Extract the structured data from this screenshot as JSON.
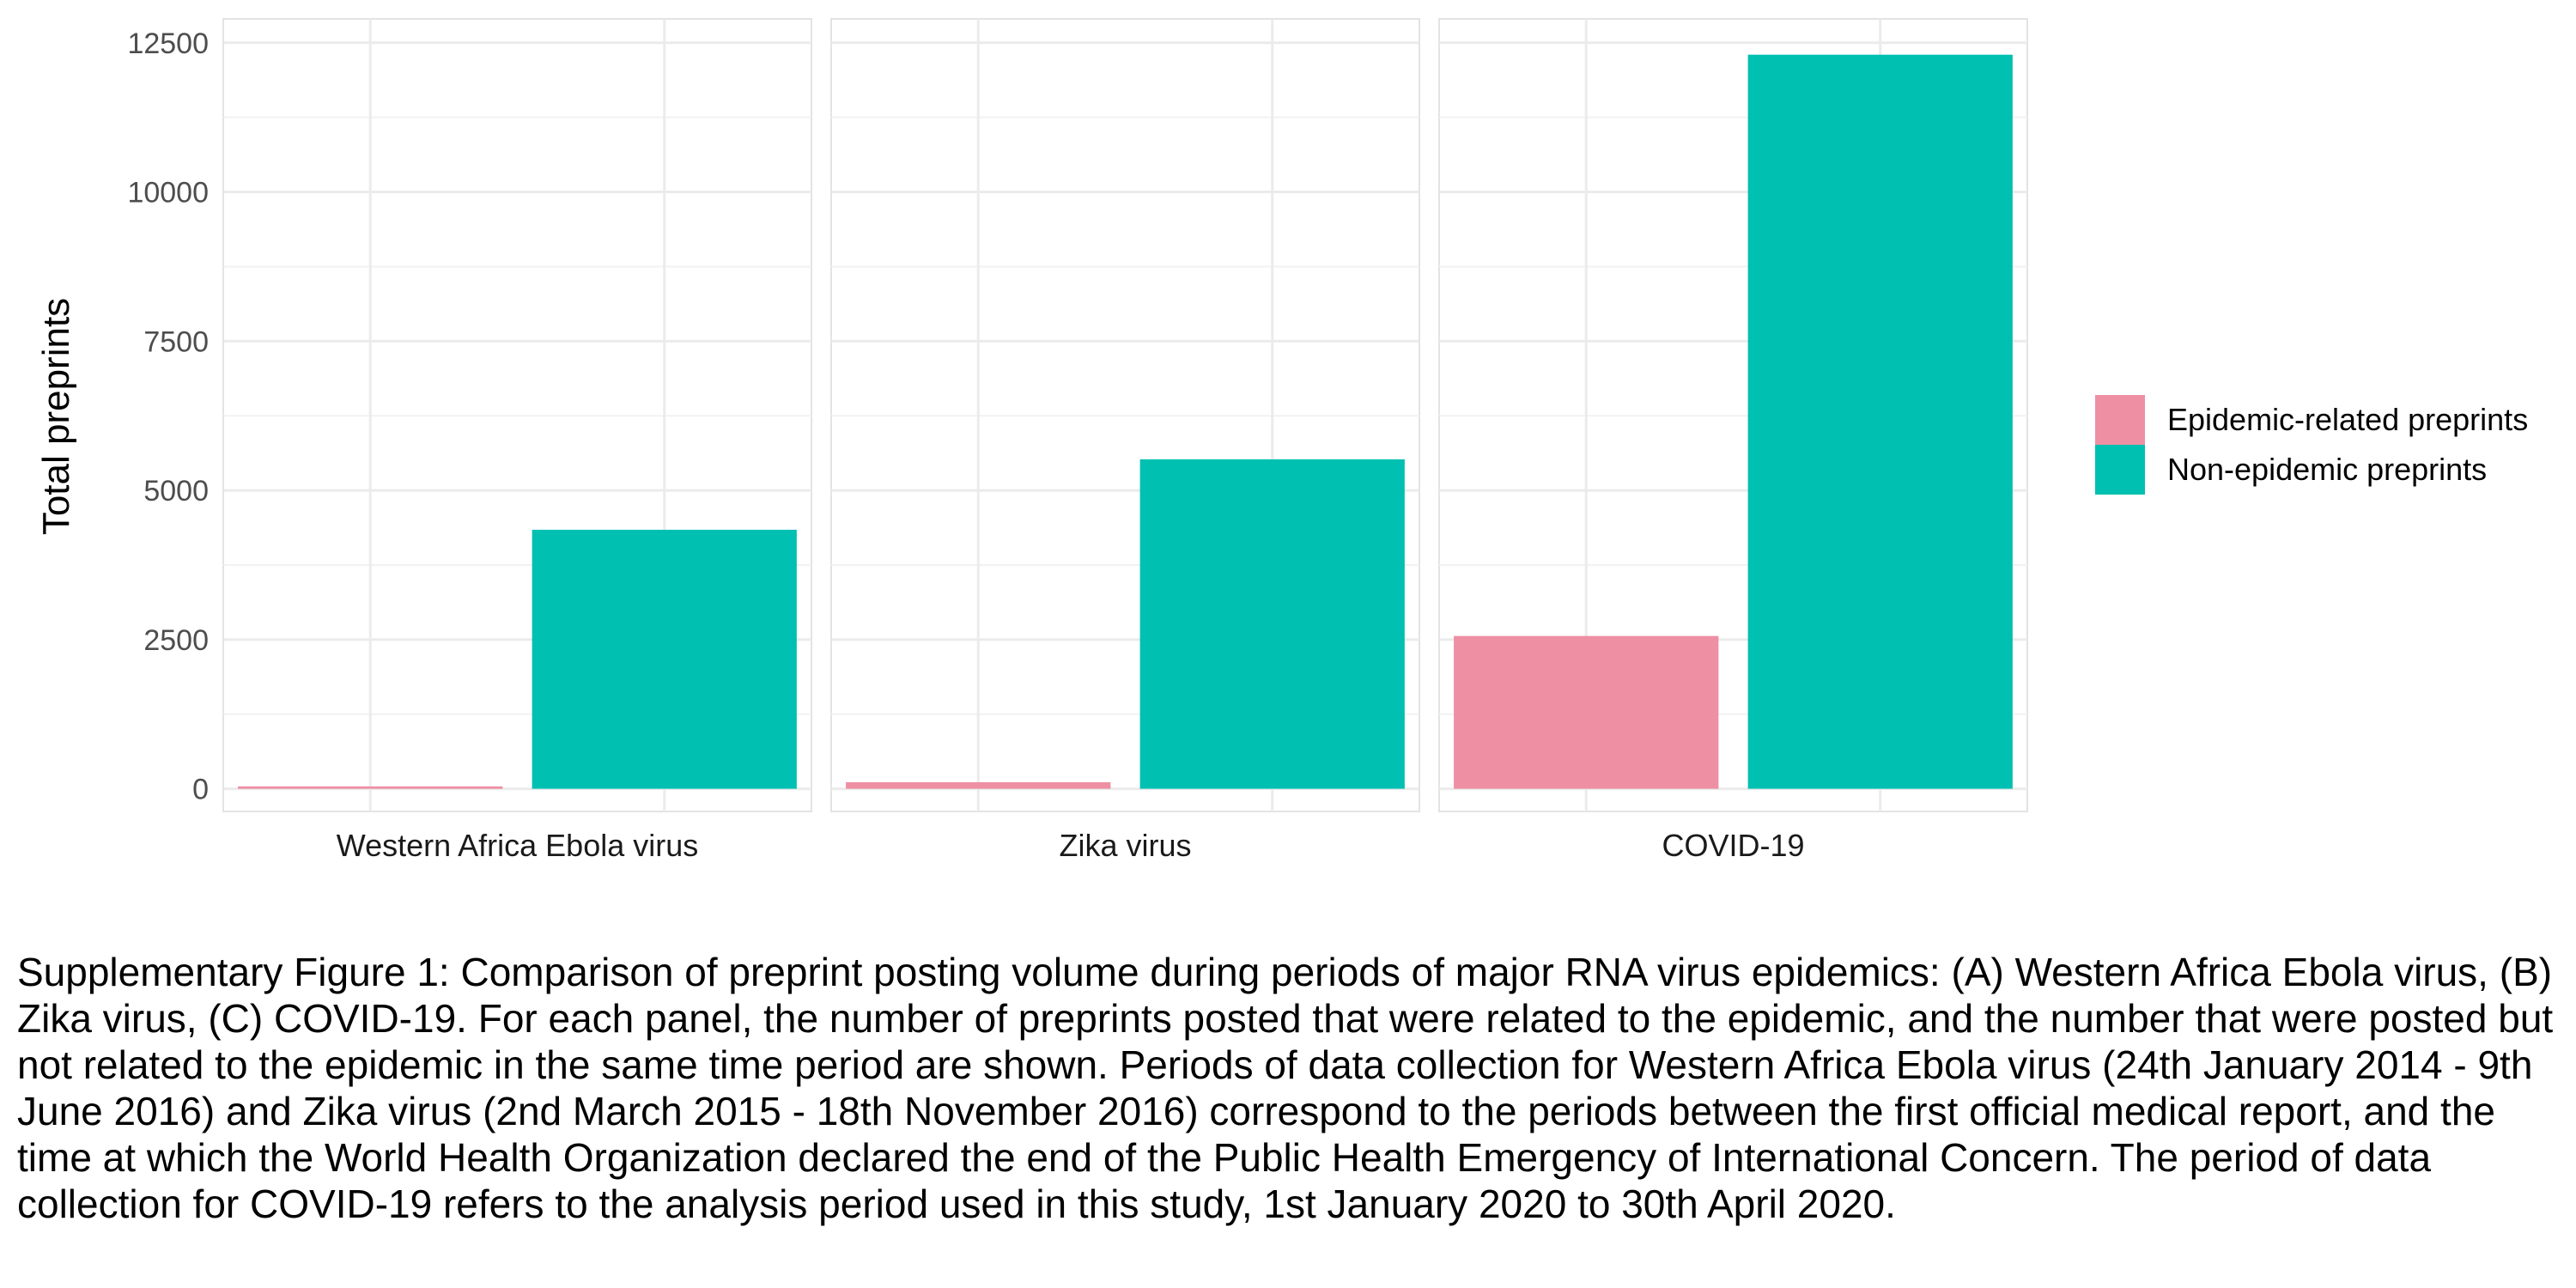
{
  "chart_data": {
    "type": "bar",
    "ylabel": "Total preprints",
    "ylim": [
      -380,
      12900
    ],
    "yticks": [
      0,
      2500,
      5000,
      7500,
      10000,
      12500
    ],
    "grid": true,
    "legend_position": "right",
    "series": [
      {
        "name": "Epidemic-related preprints",
        "color": "#ee8fa3"
      },
      {
        "name": "Non-epidemic preprints",
        "color": "#00c0b2"
      }
    ],
    "panels": [
      {
        "label": "Western Africa Ebola virus",
        "values": [
          40,
          4340
        ]
      },
      {
        "label": "Zika virus",
        "values": [
          110,
          5520
        ]
      },
      {
        "label": "COVID-19",
        "values": [
          2560,
          12300
        ]
      }
    ]
  },
  "caption": "Supplementary Figure 1: Comparison of preprint posting volume during periods of major RNA virus epidemics: (A) Western Africa Ebola virus, (B) Zika virus, (C) COVID-19. For each panel, the number of preprints posted that were related to the epidemic, and the number that were posted but not related to the epidemic in the same time period are shown. Periods of data collection for Western Africa Ebola virus (24th January 2014 - 9th June 2016) and Zika virus (2nd March 2015 - 18th November 2016) correspond to the periods between the first official medical report, and the time at which the World Health Organization declared the end of the Public Health Emergency of International Concern. The period of data collection for COVID-19 refers to the analysis period used in this study, 1st January 2020 to 30th April 2020."
}
